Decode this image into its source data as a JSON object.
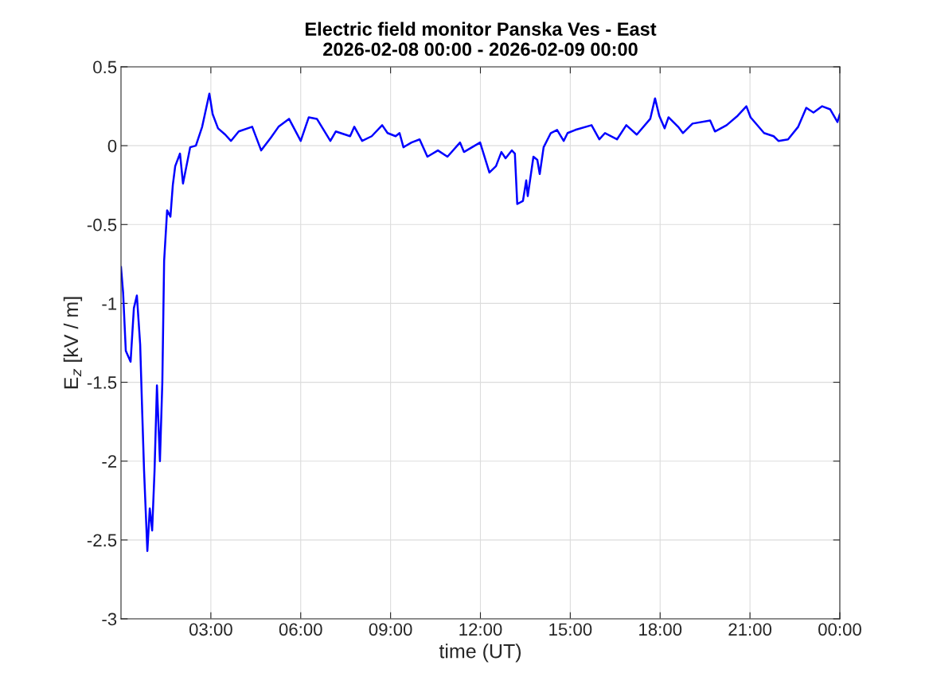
{
  "chart_data": {
    "type": "line",
    "title": "Electric field monitor Panska Ves - East\n2026-02-08 00:00 - 2026-02-09 00:00",
    "xlabel": "time (UT)",
    "ylabel": "E$_{z}$ [kV / m]",
    "xlim": [
      0,
      24
    ],
    "xticks": [
      {
        "value": 3,
        "label": "03:00"
      },
      {
        "value": 6,
        "label": "06:00"
      },
      {
        "value": 9,
        "label": "09:00"
      },
      {
        "value": 12,
        "label": "12:00"
      },
      {
        "value": 15,
        "label": "15:00"
      },
      {
        "value": 18,
        "label": "18:00"
      },
      {
        "value": 21,
        "label": "21:00"
      },
      {
        "value": 24,
        "label": "00:00"
      }
    ],
    "ylim": [
      -3,
      0.5
    ],
    "yticks": [
      -3,
      -2.5,
      -2,
      -1.5,
      -1,
      -0.5,
      0,
      0.5
    ],
    "grid": true,
    "legend": false,
    "marker": "none",
    "line_style": "solid",
    "series": [
      {
        "color": "#0000ff",
        "x": [
          0,
          0.07,
          0.16,
          0.32,
          0.43,
          0.53,
          0.64,
          0.71,
          0.77,
          0.88,
          0.96,
          1.04,
          1.12,
          1.2,
          1.3,
          1.38,
          1.44,
          1.54,
          1.65,
          1.73,
          1.81,
          1.97,
          2.07,
          2.31,
          2.5,
          2.71,
          2.95,
          3.06,
          3.24,
          3.48,
          3.67,
          3.93,
          4.38,
          4.68,
          5.0,
          5.26,
          5.61,
          6.0,
          6.27,
          6.54,
          6.99,
          7.17,
          7.65,
          7.79,
          8.05,
          8.37,
          8.72,
          8.9,
          9.17,
          9.3,
          9.43,
          9.7,
          9.97,
          10.23,
          10.58,
          10.9,
          11.32,
          11.45,
          11.99,
          12.3,
          12.52,
          12.7,
          12.84,
          13.05,
          13.15,
          13.23,
          13.42,
          13.53,
          13.58,
          13.77,
          13.9,
          13.98,
          14.11,
          14.35,
          14.56,
          14.78,
          14.91,
          15.17,
          15.71,
          15.97,
          16.16,
          16.56,
          16.87,
          17.22,
          17.67,
          17.83,
          17.97,
          18.15,
          18.28,
          18.6,
          18.76,
          19.08,
          19.67,
          19.83,
          20.22,
          20.59,
          20.88,
          21.02,
          21.47,
          21.79,
          21.95,
          22.27,
          22.61,
          22.88,
          23.12,
          23.41,
          23.68,
          23.92,
          24.0
        ],
        "values": [
          -0.77,
          -0.93,
          -1.3,
          -1.37,
          -1.03,
          -0.95,
          -1.26,
          -1.7,
          -2.06,
          -2.57,
          -2.3,
          -2.44,
          -2.06,
          -1.52,
          -2.0,
          -1.5,
          -0.73,
          -0.41,
          -0.45,
          -0.25,
          -0.13,
          -0.05,
          -0.24,
          -0.01,
          0.0,
          0.12,
          0.33,
          0.2,
          0.11,
          0.07,
          0.03,
          0.09,
          0.12,
          -0.03,
          0.05,
          0.12,
          0.17,
          0.03,
          0.18,
          0.17,
          0.03,
          0.09,
          0.06,
          0.12,
          0.03,
          0.06,
          0.13,
          0.08,
          0.06,
          0.08,
          -0.01,
          0.02,
          0.04,
          -0.07,
          -0.03,
          -0.07,
          0.02,
          -0.04,
          0.02,
          -0.17,
          -0.13,
          -0.04,
          -0.08,
          -0.03,
          -0.05,
          -0.37,
          -0.35,
          -0.22,
          -0.32,
          -0.07,
          -0.09,
          -0.18,
          -0.01,
          0.08,
          0.1,
          0.03,
          0.08,
          0.1,
          0.13,
          0.04,
          0.08,
          0.04,
          0.13,
          0.07,
          0.17,
          0.3,
          0.19,
          0.11,
          0.18,
          0.12,
          0.08,
          0.14,
          0.16,
          0.09,
          0.13,
          0.19,
          0.25,
          0.18,
          0.08,
          0.06,
          0.03,
          0.04,
          0.12,
          0.24,
          0.21,
          0.25,
          0.23,
          0.15,
          0.2
        ]
      }
    ]
  }
}
